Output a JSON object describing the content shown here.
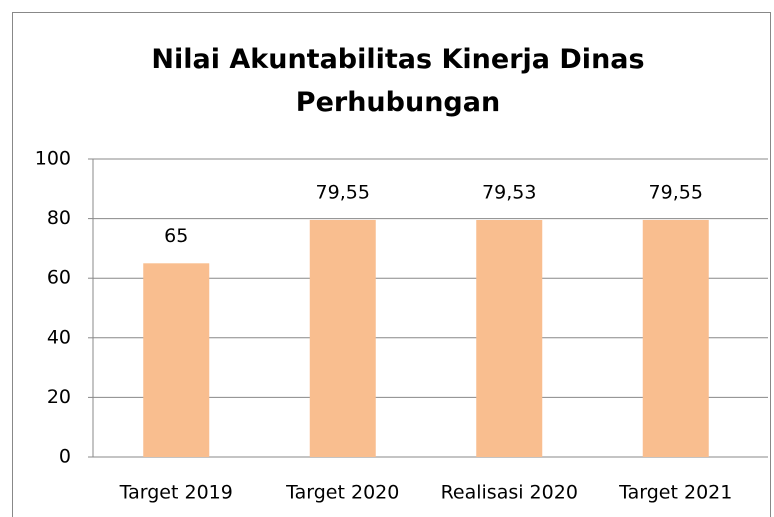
{
  "chart_data": {
    "type": "bar",
    "title": "Nilai Akuntabilitas Kinerja Dinas Perhubungan",
    "categories": [
      "Target 2019",
      "Target 2020",
      "Realisasi 2020",
      "Target 2021"
    ],
    "values": [
      65,
      79.55,
      79.53,
      79.55
    ],
    "value_labels": [
      "65",
      "79,55",
      "79,53",
      "79,55"
    ],
    "color": "#f9be8f",
    "ylim": [
      0,
      100
    ],
    "yticks": [
      0,
      20,
      40,
      60,
      80,
      100
    ],
    "grid": true
  }
}
